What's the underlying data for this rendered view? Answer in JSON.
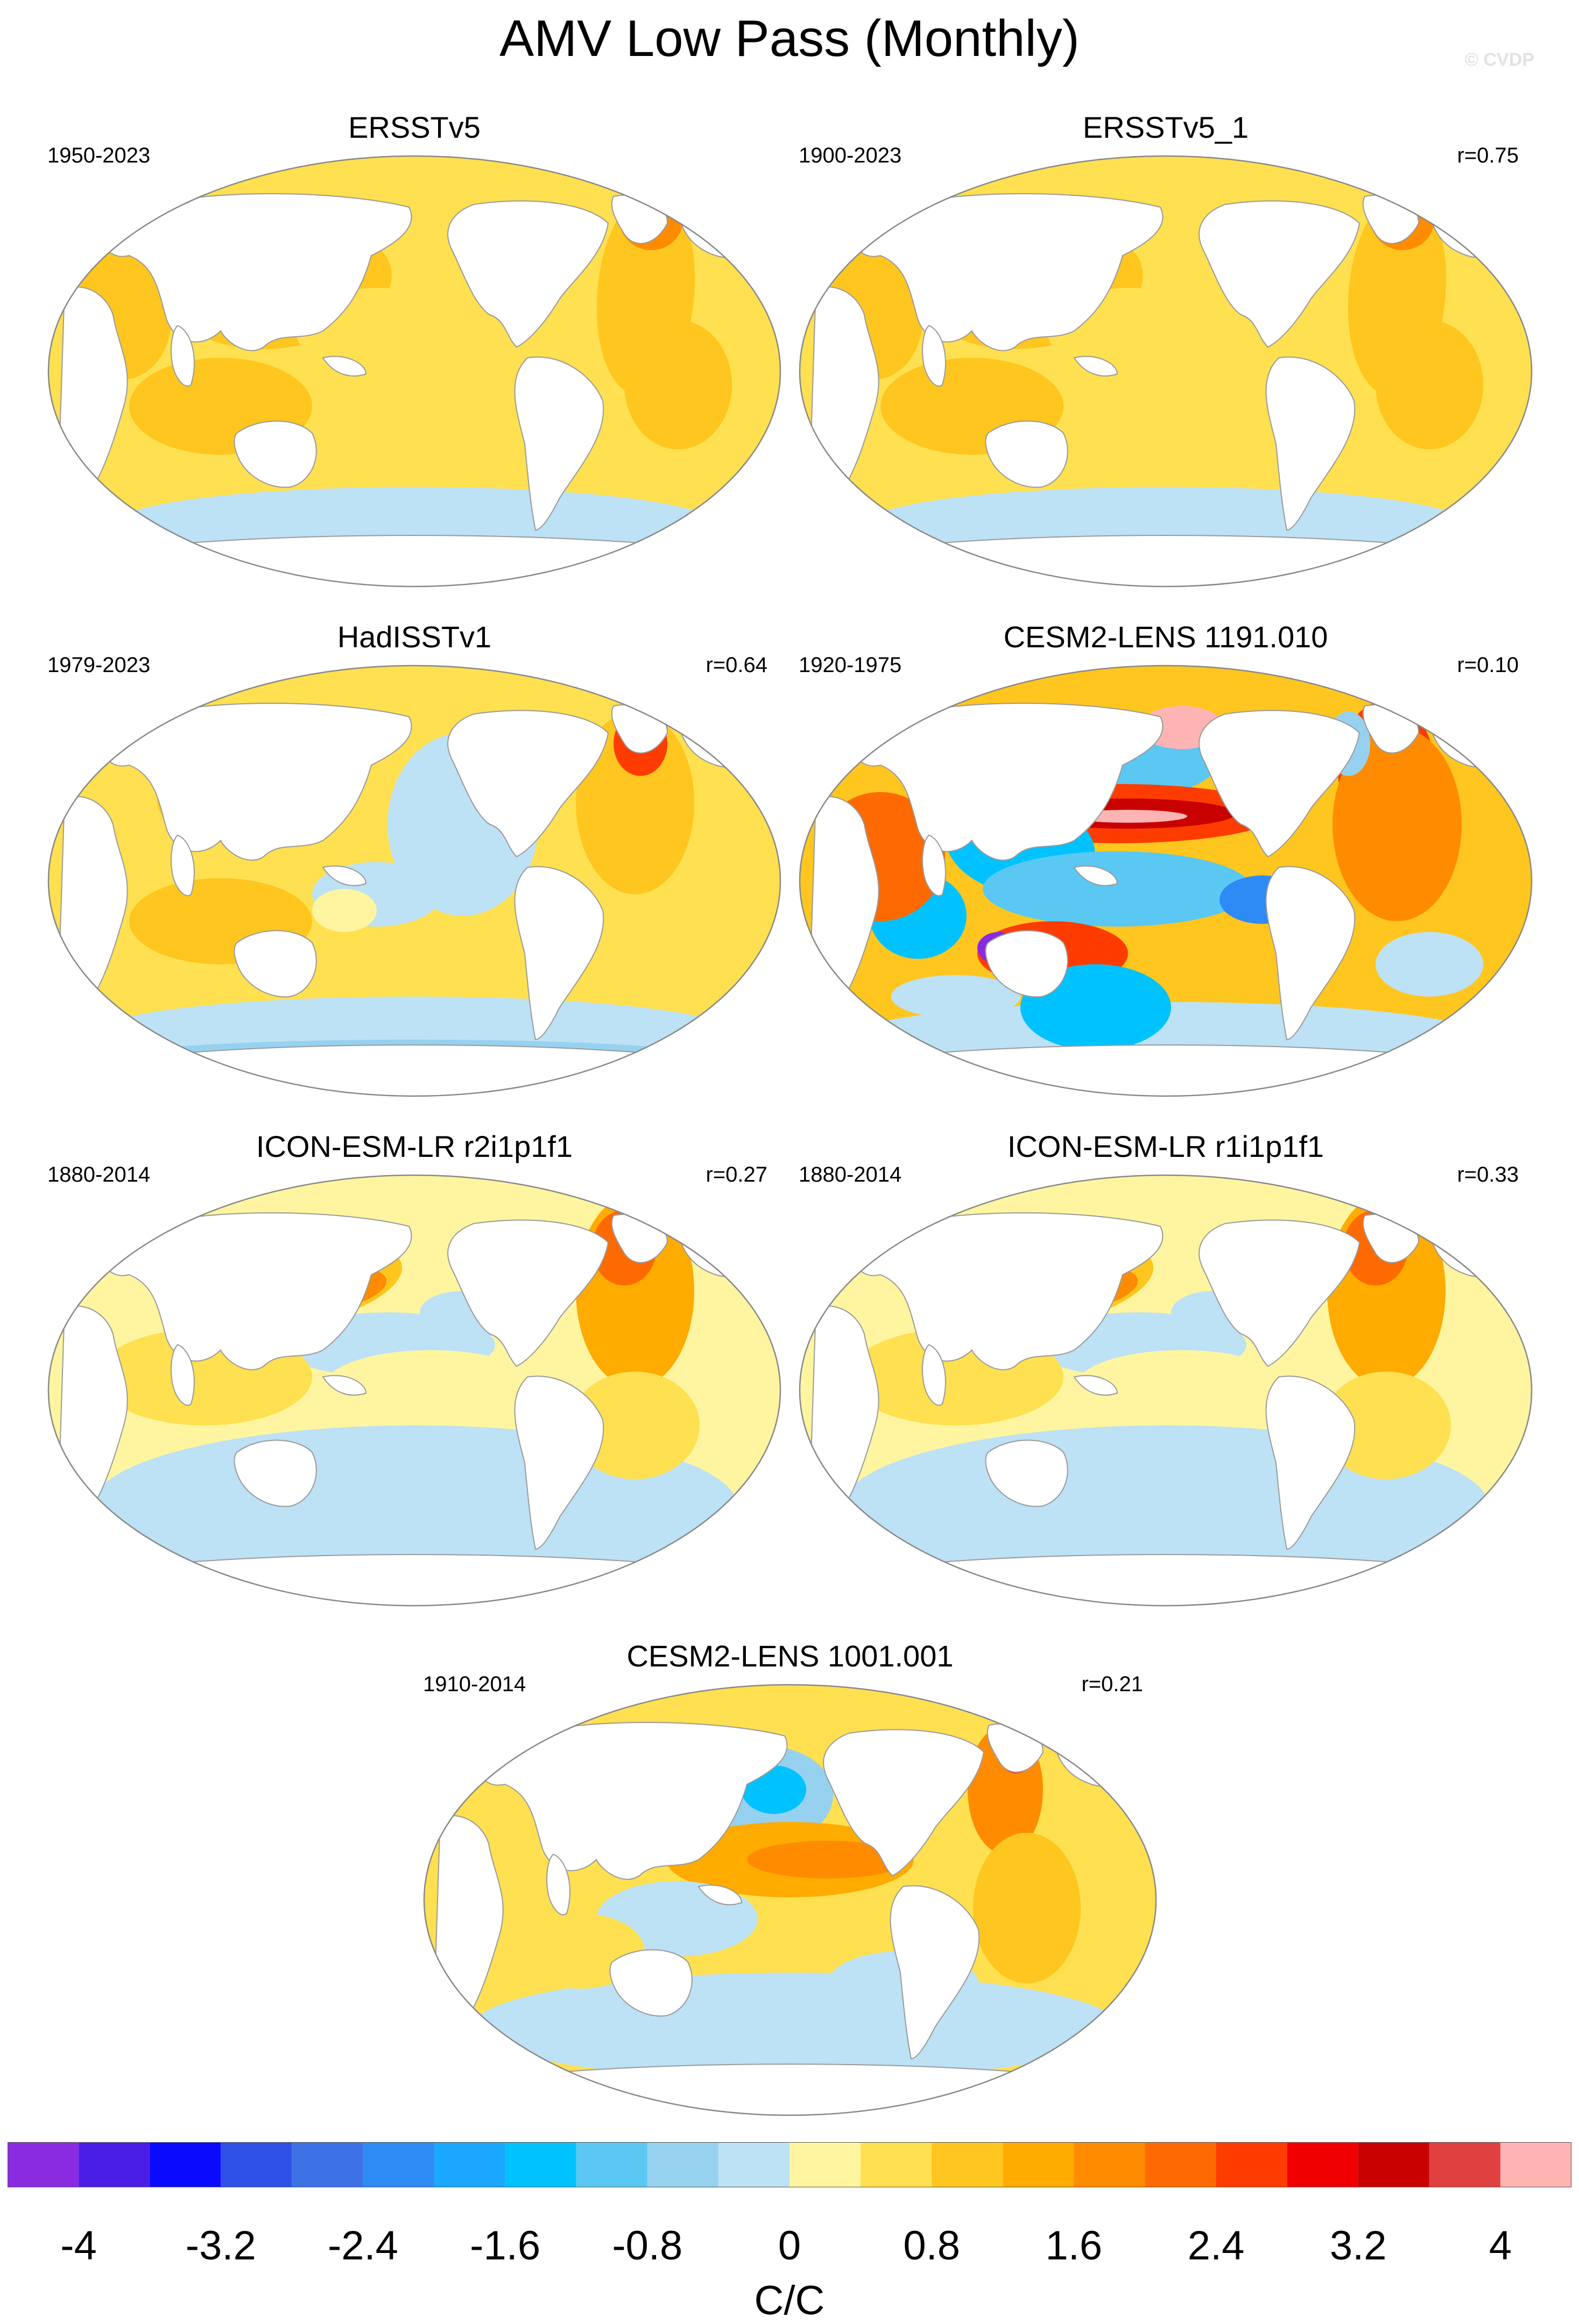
{
  "title": "AMV Low Pass (Monthly)",
  "watermark": "© CVDP",
  "panels": [
    {
      "title": "ERSSTv5",
      "years": "1950-2023",
      "r": "",
      "pattern": "obs"
    },
    {
      "title": "ERSSTv5_1",
      "years": "1900-2023",
      "r": "r=0.75",
      "pattern": "obs"
    },
    {
      "title": "HadISSTv1",
      "years": "1979-2023",
      "r": "r=0.64",
      "pattern": "hadisst"
    },
    {
      "title": "CESM2-LENS 1191.010",
      "years": "1920-1975",
      "r": "r=0.10",
      "pattern": "cesm_strong"
    },
    {
      "title": "ICON-ESM-LR r2i1p1f1",
      "years": "1880-2014",
      "r": "r=0.27",
      "pattern": "icon"
    },
    {
      "title": "ICON-ESM-LR r1i1p1f1",
      "years": "1880-2014",
      "r": "r=0.33",
      "pattern": "icon"
    },
    {
      "title": "CESM2-LENS 1001.001",
      "years": "1910-2014",
      "r": "r=0.21",
      "pattern": "cesm_mild"
    }
  ],
  "colorbar": {
    "colors": [
      "#8a2be2",
      "#4b1ee8",
      "#0a0aff",
      "#2e50e6",
      "#3c72e6",
      "#2e8af5",
      "#1aa7ff",
      "#00c2ff",
      "#5ac8f2",
      "#96d2f0",
      "#bde1f5",
      "#fff5a0",
      "#ffe050",
      "#ffc61f",
      "#ffab00",
      "#ff8c00",
      "#ff6a00",
      "#ff3c00",
      "#f00000",
      "#c80000",
      "#e04040",
      "#ffb4b4"
    ],
    "labels": [
      "-4",
      "-3.2",
      "-2.4",
      "-1.6",
      "-0.8",
      "0",
      "0.8",
      "1.6",
      "2.4",
      "3.2",
      "4"
    ],
    "units": "C/C"
  }
}
